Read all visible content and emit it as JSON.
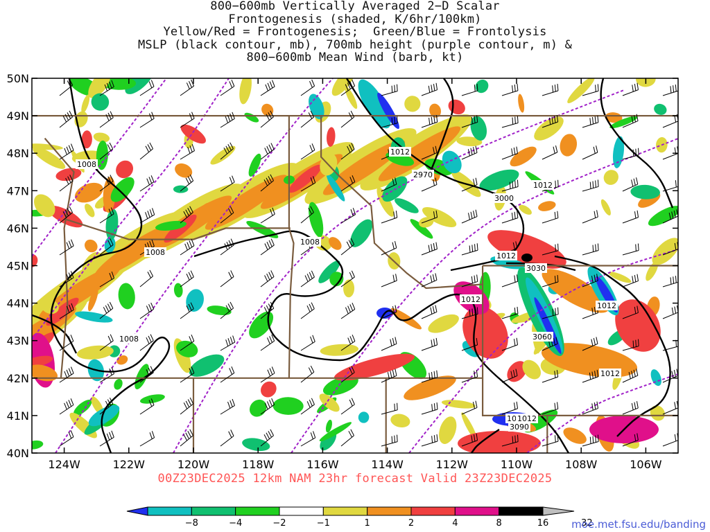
{
  "title": {
    "lines": [
      "800−600mb Vertically Averaged 2−D Scalar",
      "Frontogenesis (shaded, K/6hr/100km)",
      "Yellow/Red = Frontogenesis;  Green/Blue = Frontolysis",
      "MSLP (black contour, mb), 700mb height (purple contour, m) &",
      "800−600mb Mean Wind (barb, kt)"
    ]
  },
  "map": {
    "region": "Northwestern United States",
    "lon_range": [
      -125.0,
      -105.0
    ],
    "lat_range": [
      40.0,
      50.0
    ],
    "lon_ticks": [
      "124W",
      "122W",
      "120W",
      "118W",
      "116W",
      "114W",
      "112W",
      "110W",
      "108W",
      "106W"
    ],
    "lat_ticks": [
      "50N",
      "49N",
      "48N",
      "47N",
      "46N",
      "45N",
      "44N",
      "43N",
      "42N",
      "41N",
      "40N"
    ],
    "mslp_labels": [
      "1008",
      "1008",
      "1008",
      "1008",
      "1012",
      "1012",
      "1012",
      "1012",
      "1012",
      "1012",
      "1012",
      "1012"
    ],
    "height_labels": [
      "2970",
      "3000",
      "3030",
      "3060",
      "3090"
    ],
    "colors": {
      "mslp_contour": "#000000",
      "height_contour": "#a020c8",
      "borders": "#7a5c3e",
      "barbs": "#000000"
    }
  },
  "valid_text": "00Z23DEC2025 12km NAM 23hr forecast Valid 23Z23DEC2025",
  "colorbar": {
    "tick_labels": [
      "−8",
      "−4",
      "−2",
      "−1",
      "1",
      "2",
      "4",
      "8",
      "16",
      "32"
    ],
    "colors": [
      "#2030f0",
      "#10c0c0",
      "#10c070",
      "#20d020",
      "#ffffff",
      "#e0d840",
      "#f09020",
      "#f04040",
      "#e0108a",
      "#000000",
      "#bfbfbf"
    ]
  },
  "credit": "moe.met.fsu.edu/banding"
}
